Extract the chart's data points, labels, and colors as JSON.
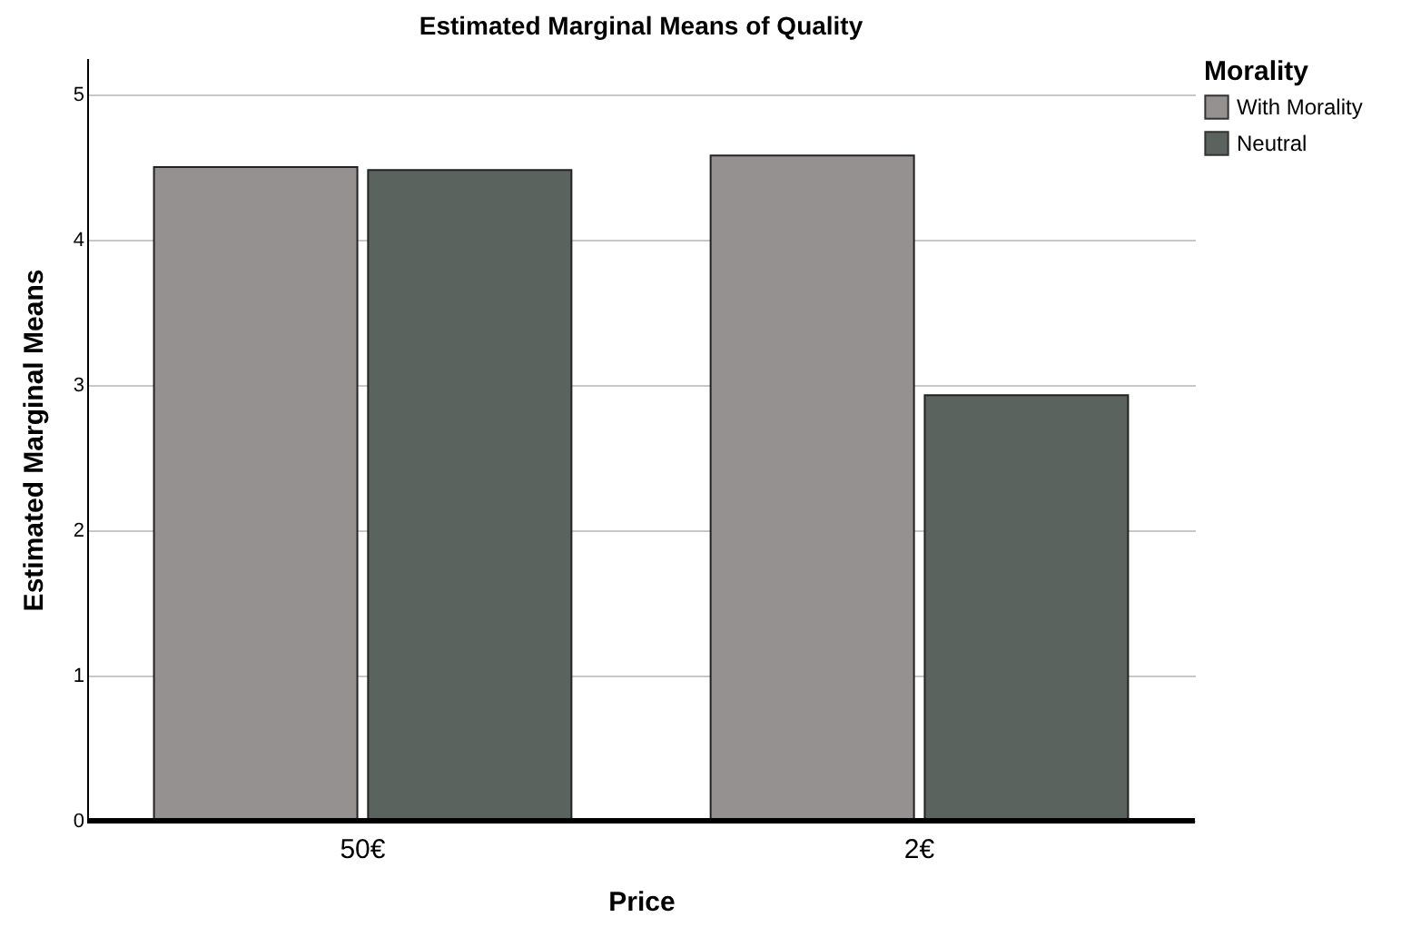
{
  "chart_data": {
    "type": "bar",
    "title": "Estimated Marginal Means of Quality",
    "xlabel": "Price",
    "ylabel": "Estimated Marginal Means",
    "legend_title": "Morality",
    "categories": [
      "50€",
      "2€"
    ],
    "series": [
      {
        "name": "With Morality",
        "color": "#959190",
        "values": [
          4.5,
          4.58
        ]
      },
      {
        "name": "Neutral",
        "color": "#5a635d",
        "values": [
          4.48,
          2.93
        ]
      }
    ],
    "ylim": [
      0,
      5.25
    ],
    "yticks": [
      0,
      1,
      2,
      3,
      4,
      5
    ],
    "grid": "y",
    "legend": "top right"
  }
}
